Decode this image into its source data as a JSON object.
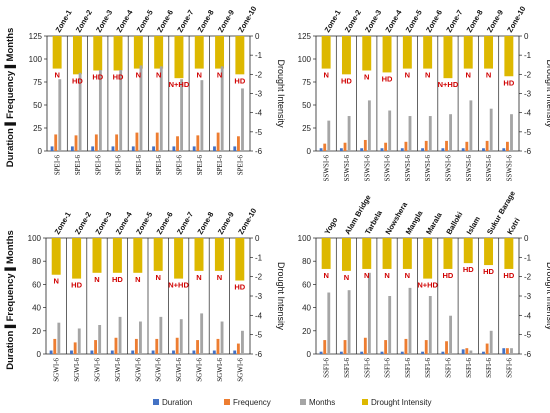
{
  "chart_data": [
    {
      "type": "bar",
      "panel": "top-left",
      "ylabel": "Duration ▌Frequency ▌Months",
      "y2label": "Drought Intensity",
      "ylim": [
        0,
        125
      ],
      "yticks": [
        0,
        25,
        50,
        75,
        100,
        125
      ],
      "y2lim": [
        -6,
        0
      ],
      "y2ticks": [
        0,
        -1,
        -2,
        -3,
        -4,
        -5,
        -6
      ],
      "zones": [
        "Zone-1",
        "Zone-2",
        "Zone-3",
        "Zone-4",
        "Zone-5",
        "Zone-6",
        "Zone-7",
        "Zone-8",
        "Zone-9",
        "Zone-10"
      ],
      "categories": [
        "SPEI-6",
        "SPEI-6",
        "SPEI-6",
        "SPEI-6",
        "SPEI-6",
        "SPEI-6",
        "SPEI-6",
        "SPEI-6",
        "SPEI-6",
        "SPEI-6"
      ],
      "classes": [
        "N",
        "HD",
        "HD",
        "HD",
        "N",
        "N",
        "N+HD",
        "N",
        "N",
        "HD"
      ],
      "series": [
        {
          "name": "Duration",
          "values": [
            5,
            5,
            5,
            5,
            5,
            5,
            5,
            5,
            5,
            5
          ]
        },
        {
          "name": "Frequency",
          "values": [
            18,
            17,
            18,
            18,
            20,
            20,
            16,
            17,
            20,
            16
          ]
        },
        {
          "name": "Months",
          "values": [
            78,
            85,
            88,
            88,
            93,
            92,
            78,
            77,
            92,
            68
          ]
        },
        {
          "name": "Drought Intensity",
          "values": [
            -1.7,
            -2.0,
            -1.8,
            -1.8,
            -1.7,
            -1.7,
            -2.2,
            -1.7,
            -1.7,
            -2.0
          ]
        }
      ]
    },
    {
      "type": "bar",
      "panel": "top-right",
      "ylabel": "",
      "y2label": "Drought Intensity",
      "ylim": [
        0,
        125
      ],
      "yticks": [
        0,
        25,
        50,
        75,
        100,
        125
      ],
      "y2lim": [
        -6,
        0
      ],
      "y2ticks": [
        0,
        -1,
        -2,
        -3,
        -4,
        -5,
        -6
      ],
      "zones": [
        "Zone-1",
        "Zone-2",
        "Zone-3",
        "Zone-4",
        "Zone-5",
        "Zone-6",
        "Zone-7",
        "Zone-8",
        "Zone-9",
        "Zone-10"
      ],
      "categories": [
        "SSWSI-6",
        "SSWSI-6",
        "SSWSI-6",
        "SSWSI-6",
        "SSWSI-6",
        "SSWSI-6",
        "SSWSI-6",
        "SSWSI-6",
        "SSWSI-6",
        "SSWSI-6"
      ],
      "classes": [
        "N",
        "HD",
        "N",
        "HD",
        "N",
        "N",
        "N+HD",
        "N",
        "N",
        "HD"
      ],
      "series": [
        {
          "name": "Duration",
          "values": [
            3,
            3,
            3,
            3,
            3,
            3,
            3,
            3,
            3,
            3
          ]
        },
        {
          "name": "Frequency",
          "values": [
            8,
            9,
            12,
            9,
            10,
            11,
            11,
            10,
            11,
            10
          ]
        },
        {
          "name": "Months",
          "values": [
            33,
            38,
            55,
            44,
            38,
            38,
            40,
            55,
            46,
            40
          ]
        },
        {
          "name": "Drought Intensity",
          "values": [
            -1.7,
            -2.0,
            -1.8,
            -1.9,
            -1.7,
            -1.7,
            -2.2,
            -1.7,
            -1.7,
            -2.1
          ]
        }
      ]
    },
    {
      "type": "bar",
      "panel": "bottom-left",
      "ylabel": "Duration ▌Frequency ▌Months",
      "y2label": "Drought Intensity",
      "ylim": [
        0,
        100
      ],
      "yticks": [
        0,
        20,
        40,
        60,
        80,
        100
      ],
      "y2lim": [
        -6,
        0
      ],
      "y2ticks": [
        0,
        -1,
        -2,
        -3,
        -4,
        -5,
        -6
      ],
      "zones": [
        "Zone-1",
        "Zone-2",
        "Zone-3",
        "Zone-4",
        "Zone-5",
        "Zone-6",
        "Zone-7",
        "Zone-8",
        "Zone-9",
        "Zone-10"
      ],
      "categories": [
        "SGWI-6",
        "SGWI-6",
        "SGWI-6",
        "SGWI-6",
        "SGWI-6",
        "SGWI-6",
        "SGWI-6",
        "SGWI-6",
        "SGWI-6",
        "SGWI-6"
      ],
      "classes": [
        "N",
        "HD",
        "N",
        "HD",
        "N",
        "N",
        "N+HD",
        "N",
        "N",
        "HD"
      ],
      "series": [
        {
          "name": "Duration",
          "values": [
            3,
            3,
            3,
            3,
            3,
            3,
            3,
            3,
            3,
            3
          ]
        },
        {
          "name": "Frequency",
          "values": [
            13,
            10,
            12,
            14,
            13,
            13,
            14,
            12,
            13,
            9
          ]
        },
        {
          "name": "Months",
          "values": [
            27,
            22,
            25,
            32,
            28,
            32,
            30,
            35,
            28,
            20
          ]
        },
        {
          "name": "Drought Intensity",
          "values": [
            -1.9,
            -2.1,
            -1.8,
            -1.8,
            -1.8,
            -1.7,
            -2.1,
            -1.7,
            -1.7,
            -2.2
          ]
        }
      ]
    },
    {
      "type": "bar",
      "panel": "bottom-right",
      "ylabel": "",
      "y2label": "Drought Intensity",
      "ylim": [
        0,
        100
      ],
      "yticks": [
        0,
        20,
        40,
        60,
        80,
        100
      ],
      "y2lim": [
        -6,
        0
      ],
      "y2ticks": [
        0,
        -1,
        -2,
        -3,
        -4,
        -5,
        -6
      ],
      "zones": [
        "Yogo",
        "Alam Bridge",
        "Tarbela",
        "Nowshera",
        "Mangla",
        "Marala",
        "Balloki",
        "Islam",
        "Sukur Barage",
        "Kotri"
      ],
      "categories": [
        "SSFI-6",
        "SSFI-6",
        "SSFI-6",
        "SSFI-6",
        "SSFI-6",
        "SSFI-6",
        "SSFI-6",
        "SSFI-6",
        "SSFI-6",
        "SSFI-6"
      ],
      "classes": [
        "N",
        "N",
        "N",
        "N",
        "N",
        "N+HD",
        "HD",
        "HD",
        "HD",
        "HD"
      ],
      "series": [
        {
          "name": "Duration",
          "values": [
            2,
            2,
            2,
            2,
            2,
            2,
            2,
            4,
            2,
            5
          ]
        },
        {
          "name": "Frequency",
          "values": [
            12,
            12,
            14,
            12,
            13,
            12,
            11,
            5,
            9,
            5
          ]
        },
        {
          "name": "Months",
          "values": [
            53,
            55,
            70,
            50,
            57,
            50,
            33,
            3,
            20,
            5
          ]
        },
        {
          "name": "Drought Intensity",
          "values": [
            -1.6,
            -1.7,
            -1.6,
            -1.6,
            -1.6,
            -2.1,
            -1.6,
            -1.3,
            -1.4,
            -1.6
          ]
        }
      ]
    }
  ],
  "legend": {
    "items": [
      "Duration",
      "Frequency",
      "Months",
      "Drought Intensity"
    ],
    "placement": "bottom"
  },
  "colors": {
    "Duration": "#4472c4",
    "Frequency": "#ed7d31",
    "Months": "#a5a5a5",
    "Drought Intensity": "#ddb800",
    "class_text": "#d00000",
    "grid": "#222222"
  }
}
